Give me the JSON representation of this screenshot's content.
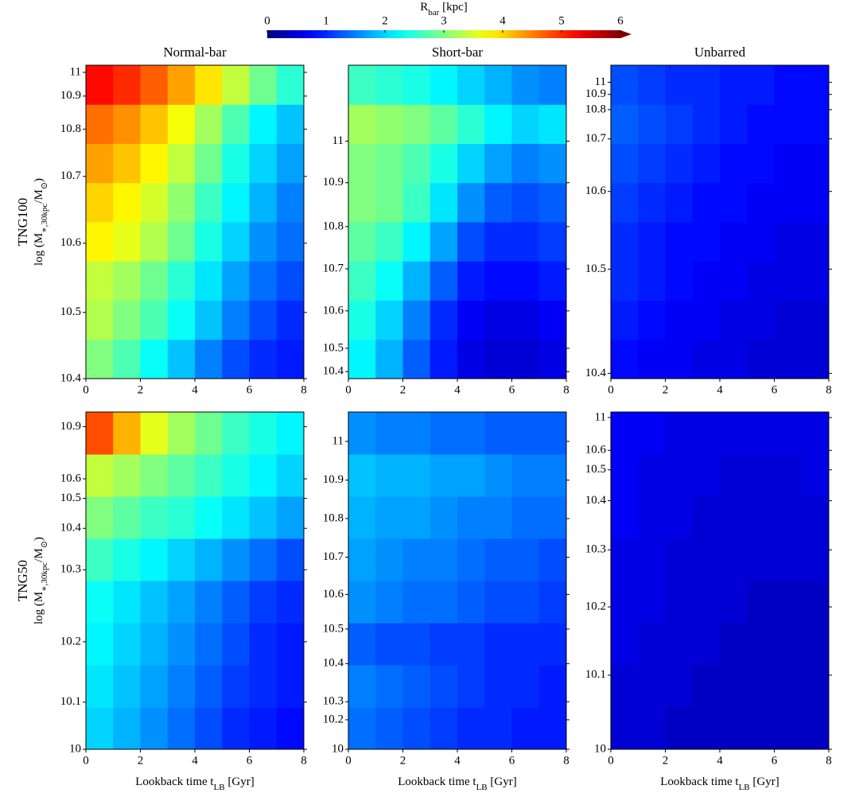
{
  "colorbar": {
    "label": [
      {
        "t": "R"
      },
      {
        "sub": "bar"
      },
      {
        "t": " [kpc]"
      }
    ],
    "lim": [
      0,
      6
    ],
    "ticks": [
      0,
      1,
      2,
      3,
      4,
      5,
      6
    ],
    "colormap": "jet",
    "extend": "max"
  },
  "column_titles": [
    "Normal-bar",
    "Short-bar",
    "Unbarred"
  ],
  "row_titles": [
    "TNG100",
    "TNG50"
  ],
  "ylabel": [
    {
      "t": "log ("
    },
    {
      "t": "M"
    },
    {
      "sub": "∗,30kpc"
    },
    {
      "t": "/M"
    },
    {
      "sub": "⊙"
    },
    {
      "t": ")"
    }
  ],
  "xlabel": [
    {
      "t": "Lookback time t"
    },
    {
      "sub": "LB"
    },
    {
      "t": " [Gyr]"
    }
  ],
  "chart_data": [
    {
      "type": "heatmap",
      "xlim": [
        0,
        8
      ],
      "xticks": [
        0,
        2,
        4,
        6,
        8
      ],
      "y_edges": [
        10.4,
        10.46,
        10.518,
        10.574,
        10.631,
        10.688,
        10.762,
        10.865,
        11.03
      ],
      "yticks": [
        10.4,
        10.5,
        10.6,
        10.7,
        10.8,
        10.9,
        11.0
      ],
      "z": [
        [
          3.0,
          2.7,
          2.3,
          1.9,
          1.5,
          1.2,
          1.0,
          0.9
        ],
        [
          3.3,
          3.0,
          2.7,
          2.3,
          1.9,
          1.5,
          1.2,
          1.0
        ],
        [
          3.4,
          3.2,
          2.9,
          2.5,
          2.1,
          1.7,
          1.4,
          1.2
        ],
        [
          3.8,
          3.6,
          3.3,
          2.9,
          2.4,
          2.0,
          1.6,
          1.4
        ],
        [
          4.0,
          3.8,
          3.5,
          3.1,
          2.6,
          2.2,
          1.8,
          1.5
        ],
        [
          4.3,
          4.1,
          3.8,
          3.4,
          2.9,
          2.4,
          2.0,
          1.7
        ],
        [
          4.6,
          4.4,
          4.1,
          3.7,
          3.2,
          2.7,
          2.2,
          1.9
        ],
        [
          5.2,
          5.0,
          4.7,
          4.3,
          3.9,
          3.4,
          2.9,
          2.5
        ]
      ]
    },
    {
      "type": "heatmap",
      "xlim": [
        0,
        8
      ],
      "xticks": [
        0,
        2,
        4,
        6,
        8
      ],
      "y_edges": [
        10.37,
        10.538,
        10.623,
        10.719,
        10.811,
        10.9,
        10.994,
        11.09,
        11.18
      ],
      "yticks": [
        10.4,
        10.5,
        10.6,
        10.7,
        10.8,
        10.9,
        11.0
      ],
      "z": [
        [
          2.2,
          1.8,
          1.3,
          0.9,
          0.6,
          0.5,
          0.5,
          0.6
        ],
        [
          2.4,
          2.0,
          1.5,
          1.0,
          0.7,
          0.6,
          0.6,
          0.7
        ],
        [
          2.6,
          2.3,
          1.8,
          1.3,
          0.9,
          0.8,
          0.8,
          0.9
        ],
        [
          2.8,
          2.6,
          2.2,
          1.7,
          1.2,
          1.0,
          1.0,
          1.1
        ],
        [
          3.0,
          2.9,
          2.6,
          2.1,
          1.6,
          1.3,
          1.2,
          1.3
        ],
        [
          3.0,
          2.9,
          2.7,
          2.4,
          2.0,
          1.7,
          1.5,
          1.6
        ],
        [
          3.2,
          3.1,
          3.0,
          2.8,
          2.5,
          2.2,
          2.0,
          2.1
        ],
        [
          2.6,
          2.5,
          2.4,
          2.2,
          2.0,
          1.8,
          1.6,
          1.5
        ]
      ]
    },
    {
      "type": "heatmap",
      "xlim": [
        0,
        8
      ],
      "xticks": [
        0,
        2,
        4,
        6,
        8
      ],
      "y_edges": [
        10.395,
        10.432,
        10.469,
        10.508,
        10.558,
        10.612,
        10.684,
        10.818,
        11.14
      ],
      "yticks": [
        10.4,
        10.5,
        10.6,
        10.7,
        10.8,
        10.9,
        11.0
      ],
      "z": [
        [
          0.8,
          0.7,
          0.7,
          0.6,
          0.6,
          0.5,
          0.5,
          0.5
        ],
        [
          0.9,
          0.8,
          0.7,
          0.7,
          0.6,
          0.6,
          0.5,
          0.5
        ],
        [
          1.0,
          0.9,
          0.8,
          0.7,
          0.7,
          0.6,
          0.6,
          0.6
        ],
        [
          1.0,
          0.9,
          0.8,
          0.8,
          0.7,
          0.7,
          0.6,
          0.6
        ],
        [
          1.1,
          1.0,
          0.9,
          0.8,
          0.8,
          0.7,
          0.7,
          0.7
        ],
        [
          1.2,
          1.1,
          1.0,
          0.9,
          0.8,
          0.8,
          0.7,
          0.7
        ],
        [
          1.3,
          1.2,
          1.1,
          1.0,
          0.9,
          0.8,
          0.8,
          0.8
        ],
        [
          1.2,
          1.1,
          1.0,
          1.0,
          0.9,
          0.9,
          0.8,
          0.8
        ]
      ]
    },
    {
      "type": "heatmap",
      "xlim": [
        0,
        8
      ],
      "xticks": [
        0,
        2,
        4,
        6,
        8
      ],
      "y_edges": [
        10.0,
        10.091,
        10.167,
        10.227,
        10.277,
        10.366,
        10.507,
        10.731,
        10.99
      ],
      "yticks": [
        10.0,
        10.1,
        10.2,
        10.3,
        10.4,
        10.5,
        10.6,
        10.9
      ],
      "z": [
        [
          2.0,
          1.8,
          1.6,
          1.4,
          1.2,
          1.0,
          0.9,
          0.8
        ],
        [
          2.1,
          1.9,
          1.7,
          1.5,
          1.3,
          1.1,
          1.0,
          0.9
        ],
        [
          2.2,
          2.0,
          1.8,
          1.6,
          1.4,
          1.2,
          1.0,
          0.9
        ],
        [
          2.3,
          2.1,
          1.9,
          1.7,
          1.5,
          1.3,
          1.1,
          1.0
        ],
        [
          2.6,
          2.4,
          2.2,
          2.0,
          1.8,
          1.6,
          1.4,
          1.2
        ],
        [
          3.0,
          2.8,
          2.6,
          2.5,
          2.3,
          2.1,
          1.9,
          1.7
        ],
        [
          3.4,
          3.2,
          3.0,
          2.8,
          2.6,
          2.4,
          2.2,
          2.0
        ],
        [
          4.8,
          4.2,
          3.6,
          3.2,
          2.9,
          2.6,
          2.4,
          2.2
        ]
      ]
    },
    {
      "type": "heatmap",
      "xlim": [
        0,
        8
      ],
      "xticks": [
        0,
        2,
        4,
        6,
        8
      ],
      "y_edges": [
        10.0,
        10.286,
        10.396,
        10.518,
        10.64,
        10.748,
        10.858,
        10.967,
        11.076
      ],
      "yticks": [
        10.0,
        10.2,
        10.3,
        10.4,
        10.5,
        10.6,
        10.7,
        10.8,
        10.9,
        11.0
      ],
      "z": [
        [
          1.4,
          1.3,
          1.2,
          1.1,
          1.0,
          1.0,
          0.9,
          0.9
        ],
        [
          1.5,
          1.4,
          1.3,
          1.2,
          1.1,
          1.0,
          1.0,
          0.9
        ],
        [
          1.3,
          1.2,
          1.2,
          1.1,
          1.1,
          1.0,
          1.0,
          1.0
        ],
        [
          1.6,
          1.5,
          1.4,
          1.4,
          1.3,
          1.2,
          1.2,
          1.1
        ],
        [
          1.7,
          1.6,
          1.5,
          1.5,
          1.4,
          1.3,
          1.3,
          1.2
        ],
        [
          1.8,
          1.7,
          1.7,
          1.6,
          1.5,
          1.5,
          1.4,
          1.4
        ],
        [
          1.9,
          1.8,
          1.8,
          1.7,
          1.7,
          1.6,
          1.5,
          1.5
        ],
        [
          1.6,
          1.5,
          1.5,
          1.4,
          1.4,
          1.3,
          1.3,
          1.3
        ]
      ]
    },
    {
      "type": "heatmap",
      "xlim": [
        0,
        8
      ],
      "xticks": [
        0,
        2,
        4,
        6,
        8
      ],
      "y_edges": [
        10.0,
        10.056,
        10.114,
        10.174,
        10.243,
        10.321,
        10.409,
        10.554,
        11.067
      ],
      "yticks": [
        10.0,
        10.1,
        10.2,
        10.3,
        10.4,
        10.5,
        10.6,
        11.0
      ],
      "z": [
        [
          0.5,
          0.5,
          0.4,
          0.4,
          0.4,
          0.4,
          0.4,
          0.4
        ],
        [
          0.5,
          0.5,
          0.5,
          0.4,
          0.4,
          0.4,
          0.4,
          0.4
        ],
        [
          0.6,
          0.5,
          0.5,
          0.5,
          0.4,
          0.4,
          0.4,
          0.4
        ],
        [
          0.6,
          0.6,
          0.5,
          0.5,
          0.5,
          0.4,
          0.4,
          0.4
        ],
        [
          0.6,
          0.6,
          0.5,
          0.5,
          0.5,
          0.5,
          0.5,
          0.5
        ],
        [
          0.7,
          0.6,
          0.6,
          0.5,
          0.5,
          0.5,
          0.5,
          0.5
        ],
        [
          0.7,
          0.6,
          0.6,
          0.6,
          0.5,
          0.5,
          0.5,
          0.6
        ],
        [
          0.7,
          0.7,
          0.6,
          0.6,
          0.6,
          0.6,
          0.6,
          0.6
        ]
      ]
    }
  ]
}
